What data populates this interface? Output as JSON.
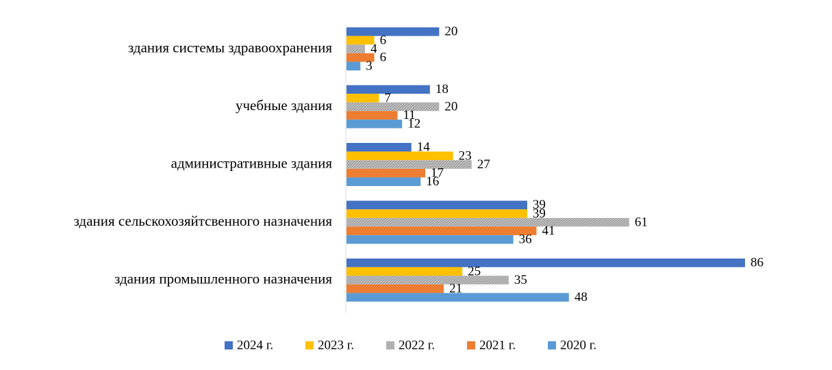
{
  "chart_data": {
    "type": "bar",
    "orientation": "horizontal",
    "categories": [
      "здания системы здравоохранения",
      "учебные здания",
      "административные здания",
      "здания сельскохозяйтсвенного назначения",
      "здания промышленного назначения"
    ],
    "series": [
      {
        "name": "2024 г.",
        "color": "#4472C4",
        "values": [
          20,
          18,
          14,
          39,
          86
        ]
      },
      {
        "name": "2023 г.",
        "color": "#FFC000",
        "values": [
          6,
          7,
          23,
          39,
          25
        ]
      },
      {
        "name": "2022 г.",
        "color": "#A5A5A5",
        "pattern": "hatched",
        "values": [
          4,
          20,
          27,
          61,
          35
        ]
      },
      {
        "name": "2021 г.",
        "color": "#ED7D31",
        "values": [
          6,
          11,
          17,
          41,
          21
        ]
      },
      {
        "name": "2020 г.",
        "color": "#5B9BD5",
        "values": [
          3,
          12,
          16,
          36,
          48
        ]
      }
    ],
    "xlim": [
      0,
      86
    ],
    "data_labels": true,
    "grid": false,
    "legend": "bottom"
  }
}
